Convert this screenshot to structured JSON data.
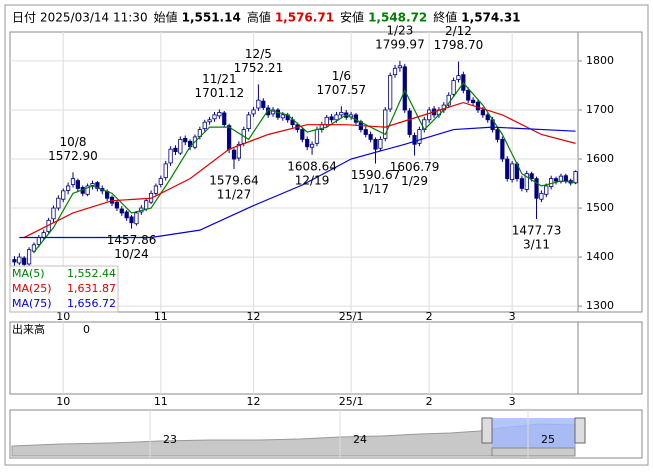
{
  "chart_data": {
    "type": "candlestick",
    "header": {
      "items": [
        {
          "label": "日付",
          "value": "2025/03/14 11:30",
          "color": "#000000"
        },
        {
          "label": "始値",
          "value": "1,551.14",
          "color": "#000000"
        },
        {
          "label": "高値",
          "value": "1,576.71",
          "color": "#e00000"
        },
        {
          "label": "安値",
          "value": "1,548.72",
          "color": "#008000"
        },
        {
          "label": "終値",
          "value": "1,574.31",
          "color": "#000000"
        }
      ]
    },
    "up_color": "#ffffff",
    "down_color": "#000080",
    "edge_color": "#000080",
    "candles": [
      [
        1395,
        1402,
        1380,
        1390
      ],
      [
        1388,
        1408,
        1384,
        1400
      ],
      [
        1398,
        1402,
        1378,
        1385
      ],
      [
        1386,
        1420,
        1382,
        1415
      ],
      [
        1412,
        1430,
        1408,
        1425
      ],
      [
        1426,
        1445,
        1420,
        1440
      ],
      [
        1440,
        1456,
        1434,
        1450
      ],
      [
        1452,
        1480,
        1446,
        1475
      ],
      [
        1478,
        1505,
        1470,
        1500
      ],
      [
        1500,
        1526,
        1495,
        1520
      ],
      [
        1518,
        1540,
        1512,
        1535
      ],
      [
        1536,
        1552,
        1528,
        1545
      ],
      [
        1548,
        1572.9,
        1542,
        1560
      ],
      [
        1556,
        1560,
        1532,
        1540
      ],
      [
        1542,
        1546,
        1524,
        1530
      ],
      [
        1528,
        1550,
        1524,
        1545
      ],
      [
        1546,
        1556,
        1538,
        1550
      ],
      [
        1552,
        1555,
        1534,
        1540
      ],
      [
        1540,
        1546,
        1528,
        1535
      ],
      [
        1534,
        1538,
        1514,
        1520
      ],
      [
        1522,
        1526,
        1504,
        1510
      ],
      [
        1512,
        1516,
        1494,
        1500
      ],
      [
        1498,
        1504,
        1484,
        1490
      ],
      [
        1492,
        1496,
        1474,
        1480
      ],
      [
        1482,
        1486,
        1457.86,
        1470
      ],
      [
        1468,
        1494,
        1464,
        1490
      ],
      [
        1492,
        1506,
        1486,
        1500
      ],
      [
        1498,
        1520,
        1494,
        1515
      ],
      [
        1512,
        1536,
        1508,
        1530
      ],
      [
        1530,
        1550,
        1524,
        1545
      ],
      [
        1548,
        1566,
        1542,
        1560
      ],
      [
        1562,
        1596,
        1556,
        1590
      ],
      [
        1592,
        1626,
        1586,
        1620
      ],
      [
        1622,
        1628,
        1608,
        1615
      ],
      [
        1612,
        1646,
        1608,
        1640
      ],
      [
        1642,
        1648,
        1628,
        1635
      ],
      [
        1636,
        1640,
        1618,
        1625
      ],
      [
        1624,
        1650,
        1620,
        1645
      ],
      [
        1646,
        1666,
        1640,
        1660
      ],
      [
        1662,
        1680,
        1656,
        1675
      ],
      [
        1676,
        1686,
        1670,
        1680
      ],
      [
        1682,
        1696,
        1676,
        1690
      ],
      [
        1688,
        1701.12,
        1682,
        1695
      ],
      [
        1694,
        1698,
        1664,
        1670
      ],
      [
        1668,
        1672,
        1612,
        1620
      ],
      [
        1618,
        1622,
        1579.64,
        1600
      ],
      [
        1602,
        1636,
        1596,
        1630
      ],
      [
        1632,
        1666,
        1626,
        1660
      ],
      [
        1662,
        1696,
        1656,
        1690
      ],
      [
        1692,
        1706,
        1686,
        1700
      ],
      [
        1704,
        1752.21,
        1698,
        1720
      ],
      [
        1718,
        1724,
        1700,
        1705
      ],
      [
        1704,
        1710,
        1684,
        1690
      ],
      [
        1692,
        1706,
        1686,
        1700
      ],
      [
        1700,
        1704,
        1680,
        1685
      ],
      [
        1684,
        1696,
        1678,
        1690
      ],
      [
        1690,
        1694,
        1674,
        1680
      ],
      [
        1680,
        1686,
        1664,
        1670
      ],
      [
        1670,
        1674,
        1654,
        1660
      ],
      [
        1660,
        1664,
        1634,
        1640
      ],
      [
        1640,
        1646,
        1618,
        1625
      ],
      [
        1624,
        1636,
        1608.64,
        1630
      ],
      [
        1632,
        1666,
        1626,
        1660
      ],
      [
        1660,
        1676,
        1654,
        1670
      ],
      [
        1670,
        1690,
        1664,
        1685
      ],
      [
        1686,
        1692,
        1674,
        1680
      ],
      [
        1680,
        1696,
        1674,
        1690
      ],
      [
        1690,
        1707.57,
        1684,
        1695
      ],
      [
        1694,
        1700,
        1680,
        1685
      ],
      [
        1686,
        1696,
        1680,
        1690
      ],
      [
        1690,
        1694,
        1670,
        1675
      ],
      [
        1676,
        1680,
        1654,
        1660
      ],
      [
        1660,
        1666,
        1644,
        1650
      ],
      [
        1650,
        1656,
        1634,
        1640
      ],
      [
        1640,
        1644,
        1590.67,
        1620
      ],
      [
        1622,
        1646,
        1616,
        1640
      ],
      [
        1642,
        1706,
        1636,
        1700
      ],
      [
        1702,
        1776,
        1696,
        1770
      ],
      [
        1772,
        1792,
        1766,
        1785
      ],
      [
        1786,
        1799.97,
        1778,
        1790
      ],
      [
        1788,
        1794,
        1694,
        1700
      ],
      [
        1698,
        1704,
        1644,
        1650
      ],
      [
        1648,
        1654,
        1606.79,
        1630
      ],
      [
        1632,
        1666,
        1626,
        1660
      ],
      [
        1660,
        1686,
        1654,
        1680
      ],
      [
        1680,
        1706,
        1674,
        1700
      ],
      [
        1702,
        1708,
        1684,
        1690
      ],
      [
        1690,
        1706,
        1684,
        1700
      ],
      [
        1700,
        1716,
        1694,
        1710
      ],
      [
        1710,
        1736,
        1704,
        1730
      ],
      [
        1732,
        1766,
        1726,
        1760
      ],
      [
        1762,
        1798.7,
        1756,
        1770
      ],
      [
        1772,
        1778,
        1734,
        1740
      ],
      [
        1740,
        1746,
        1714,
        1720
      ],
      [
        1720,
        1726,
        1708,
        1715
      ],
      [
        1716,
        1720,
        1694,
        1700
      ],
      [
        1700,
        1706,
        1684,
        1690
      ],
      [
        1690,
        1694,
        1674,
        1680
      ],
      [
        1680,
        1686,
        1654,
        1660
      ],
      [
        1660,
        1666,
        1634,
        1640
      ],
      [
        1640,
        1646,
        1594,
        1600
      ],
      [
        1600,
        1606,
        1554,
        1560
      ],
      [
        1558,
        1596,
        1552,
        1590
      ],
      [
        1590,
        1594,
        1554,
        1560
      ],
      [
        1560,
        1566,
        1534,
        1540
      ],
      [
        1538,
        1576,
        1532,
        1570
      ],
      [
        1570,
        1574,
        1554,
        1560
      ],
      [
        1560,
        1564,
        1477.73,
        1520
      ],
      [
        1518,
        1536,
        1512,
        1530
      ],
      [
        1528,
        1550,
        1522,
        1545
      ],
      [
        1544,
        1566,
        1538,
        1560
      ],
      [
        1560,
        1564,
        1548,
        1555
      ],
      [
        1554,
        1570,
        1550,
        1565
      ],
      [
        1566,
        1570,
        1550,
        1555
      ],
      [
        1556,
        1560,
        1546,
        1551
      ],
      [
        1551.14,
        1576.71,
        1548.72,
        1574.31
      ]
    ],
    "series": [
      {
        "name": "MA(5)",
        "legend_value": "1,552.44",
        "color": "#008000",
        "x": [
          4,
          8,
          12,
          16,
          20,
          24,
          28,
          32,
          36,
          40,
          44,
          48,
          52,
          56,
          60,
          64,
          68,
          72,
          76,
          80,
          84,
          88,
          92,
          96,
          100,
          104,
          108,
          112,
          115
        ],
        "values": [
          1410,
          1460,
          1530,
          1545,
          1530,
          1490,
          1500,
          1560,
          1625,
          1665,
          1665,
          1640,
          1700,
          1690,
          1655,
          1665,
          1690,
          1670,
          1650,
          1740,
          1660,
          1700,
          1755,
          1710,
          1650,
          1570,
          1545,
          1555,
          1552.44
        ]
      },
      {
        "name": "MA(25)",
        "legend_value": "1,631.87",
        "color": "#e00000",
        "x": [
          2,
          12,
          20,
          28,
          36,
          44,
          52,
          60,
          68,
          76,
          84,
          92,
          100,
          108,
          115
        ],
        "values": [
          1440,
          1490,
          1515,
          1520,
          1560,
          1620,
          1650,
          1670,
          1670,
          1665,
          1690,
          1715,
          1690,
          1650,
          1631.87
        ]
      },
      {
        "name": "MA(75)",
        "legend_value": "1,656.72",
        "color": "#0000e0",
        "x": [
          1,
          28,
          38,
          49,
          59,
          69,
          80,
          90,
          98,
          115
        ],
        "values": [
          1440,
          1440,
          1455,
          1505,
          1547,
          1600,
          1630,
          1660,
          1665,
          1656.72
        ]
      }
    ],
    "annotations": [
      {
        "date": "10/8",
        "value": 1572.9,
        "value_label": "1572.90"
      },
      {
        "date": "10/24",
        "value": 1457.86,
        "value_label": "1457.86"
      },
      {
        "date": "11/21",
        "value": 1701.12,
        "value_label": "1701.12"
      },
      {
        "date": "11/27",
        "value": 1579.64,
        "value_label": "1579.64"
      },
      {
        "date": "12/5",
        "value": 1752.21,
        "value_label": "1752.21"
      },
      {
        "date": "12/19",
        "value": 1608.64,
        "value_label": "1608.64"
      },
      {
        "date": "1/6",
        "value": 1707.57,
        "value_label": "1707.57"
      },
      {
        "date": "1/17",
        "value": 1590.67,
        "value_label": "1590.67"
      },
      {
        "date": "1/23",
        "value": 1799.97,
        "value_label": "1799.97"
      },
      {
        "date": "1/29",
        "value": 1606.79,
        "value_label": "1606.79"
      },
      {
        "date": "2/12",
        "value": 1798.7,
        "value_label": "1798.70"
      },
      {
        "date": "3/11",
        "value": 1477.73,
        "value_label": "1477.73"
      }
    ],
    "ylim": [
      1288,
      1859
    ],
    "yticks": [
      1300,
      1400,
      1500,
      1600,
      1700,
      1800
    ],
    "xticks": [
      {
        "value": 10,
        "label": "10"
      },
      {
        "value": 30,
        "label": "11"
      },
      {
        "value": 49,
        "label": "12"
      },
      {
        "value": 69,
        "label": "25/1"
      },
      {
        "value": 85,
        "label": "2"
      },
      {
        "value": 102,
        "label": "3"
      }
    ],
    "volume": {
      "label": "出来高",
      "value": 0
    },
    "navigator": {
      "labels": [
        "23",
        "24",
        "25"
      ]
    }
  }
}
